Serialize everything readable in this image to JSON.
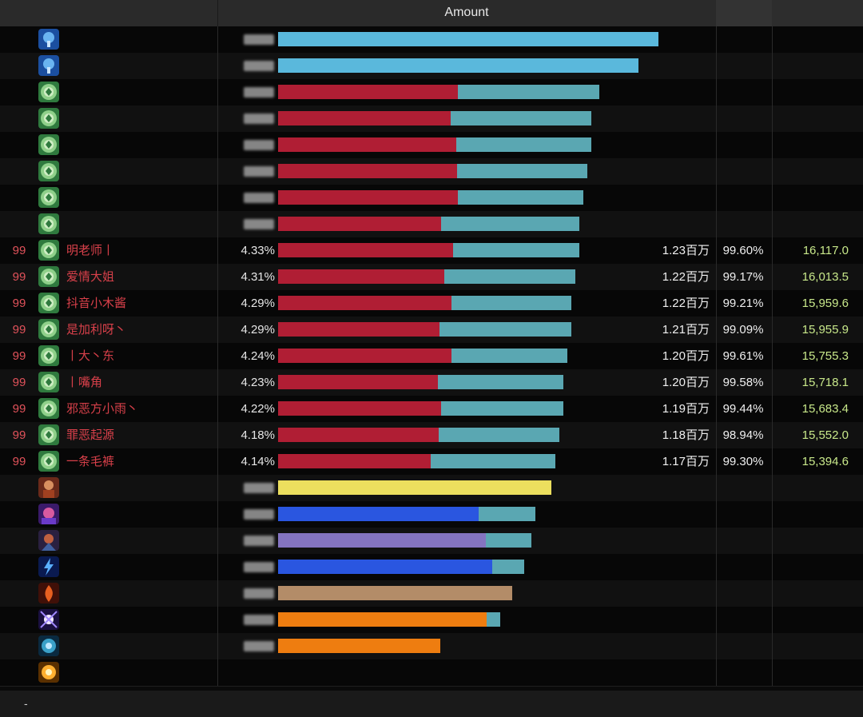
{
  "header": {
    "amount_label": "Amount"
  },
  "colors": {
    "red": "#b01e34",
    "teal": "#5aa7b2",
    "sky": "#5ab8dc",
    "yellow": "#ecdf5e",
    "blue": "#2a56e0",
    "purple": "#8474c0",
    "tan": "#b38c68",
    "orange": "#ee7d10"
  },
  "rows": [
    {
      "level": "",
      "name": "",
      "percent": "",
      "damage": "",
      "accuracy": "",
      "dps": "",
      "icon": "tree-icon",
      "seg1": {
        "color": "#5ab8dc",
        "frac": 1.0
      },
      "seg2": {
        "color": "#5ab8dc",
        "frac": 0.0
      },
      "total": 0.96
    },
    {
      "level": "",
      "name": "",
      "percent": "",
      "damage": "",
      "accuracy": "",
      "dps": "",
      "icon": "tree-icon",
      "seg1": {
        "color": "#5ab8dc",
        "frac": 1.0
      },
      "seg2": {
        "color": "#5ab8dc",
        "frac": 0.0
      },
      "total": 0.91
    },
    {
      "level": "",
      "name": "",
      "percent": "",
      "damage": "",
      "accuracy": "",
      "dps": "",
      "icon": "sigil-icon",
      "seg1": {
        "color": "#b01e34",
        "frac": 0.56
      },
      "seg2": {
        "color": "#5aa7b2",
        "frac": 0.44
      },
      "total": 0.81
    },
    {
      "level": "",
      "name": "",
      "percent": "",
      "damage": "",
      "accuracy": "",
      "dps": "",
      "icon": "sigil-icon",
      "seg1": {
        "color": "#b01e34",
        "frac": 0.55
      },
      "seg2": {
        "color": "#5aa7b2",
        "frac": 0.45
      },
      "total": 0.79
    },
    {
      "level": "",
      "name": "",
      "percent": "",
      "damage": "",
      "accuracy": "",
      "dps": "",
      "icon": "sigil-icon",
      "seg1": {
        "color": "#b01e34",
        "frac": 0.57
      },
      "seg2": {
        "color": "#5aa7b2",
        "frac": 0.43
      },
      "total": 0.79
    },
    {
      "level": "",
      "name": "",
      "percent": "",
      "damage": "",
      "accuracy": "",
      "dps": "",
      "icon": "sigil-icon",
      "seg1": {
        "color": "#b01e34",
        "frac": 0.58
      },
      "seg2": {
        "color": "#5aa7b2",
        "frac": 0.42
      },
      "total": 0.78
    },
    {
      "level": "",
      "name": "",
      "percent": "",
      "damage": "",
      "accuracy": "",
      "dps": "",
      "icon": "sigil-icon",
      "seg1": {
        "color": "#b01e34",
        "frac": 0.59
      },
      "seg2": {
        "color": "#5aa7b2",
        "frac": 0.41
      },
      "total": 0.77
    },
    {
      "level": "",
      "name": "",
      "percent": "",
      "damage": "",
      "accuracy": "",
      "dps": "",
      "icon": "sigil-icon",
      "seg1": {
        "color": "#b01e34",
        "frac": 0.54
      },
      "seg2": {
        "color": "#5aa7b2",
        "frac": 0.46
      },
      "total": 0.76
    },
    {
      "level": "99",
      "name": "明老师丨",
      "percent": "4.33%",
      "damage": "1.23百万",
      "accuracy": "99.60%",
      "dps": "16,117.0",
      "icon": "sigil-icon",
      "seg1": {
        "color": "#b01e34",
        "frac": 0.58
      },
      "seg2": {
        "color": "#5aa7b2",
        "frac": 0.42
      },
      "total": 0.76
    },
    {
      "level": "99",
      "name": "爱情大姐",
      "percent": "4.31%",
      "damage": "1.22百万",
      "accuracy": "99.17%",
      "dps": "16,013.5",
      "icon": "sigil-icon",
      "seg1": {
        "color": "#b01e34",
        "frac": 0.56
      },
      "seg2": {
        "color": "#5aa7b2",
        "frac": 0.44
      },
      "total": 0.75
    },
    {
      "level": "99",
      "name": "抖音小木酱",
      "percent": "4.29%",
      "damage": "1.22百万",
      "accuracy": "99.21%",
      "dps": "15,959.6",
      "icon": "sigil-icon",
      "seg1": {
        "color": "#b01e34",
        "frac": 0.59
      },
      "seg2": {
        "color": "#5aa7b2",
        "frac": 0.41
      },
      "total": 0.74
    },
    {
      "level": "99",
      "name": "是加利呀丶",
      "percent": "4.29%",
      "damage": "1.21百万",
      "accuracy": "99.09%",
      "dps": "15,955.9",
      "icon": "sigil-icon",
      "seg1": {
        "color": "#b01e34",
        "frac": 0.55
      },
      "seg2": {
        "color": "#5aa7b2",
        "frac": 0.45
      },
      "total": 0.74
    },
    {
      "level": "99",
      "name": "丨大丶东",
      "percent": "4.24%",
      "damage": "1.20百万",
      "accuracy": "99.61%",
      "dps": "15,755.3",
      "icon": "sigil-icon",
      "seg1": {
        "color": "#b01e34",
        "frac": 0.6
      },
      "seg2": {
        "color": "#5aa7b2",
        "frac": 0.4
      },
      "total": 0.73
    },
    {
      "level": "99",
      "name": "丨嘴角",
      "percent": "4.23%",
      "damage": "1.20百万",
      "accuracy": "99.58%",
      "dps": "15,718.1",
      "icon": "sigil-icon",
      "seg1": {
        "color": "#b01e34",
        "frac": 0.56
      },
      "seg2": {
        "color": "#5aa7b2",
        "frac": 0.44
      },
      "total": 0.72
    },
    {
      "level": "99",
      "name": "邪恶方小雨丶",
      "percent": "4.22%",
      "damage": "1.19百万",
      "accuracy": "99.44%",
      "dps": "15,683.4",
      "icon": "sigil-icon",
      "seg1": {
        "color": "#b01e34",
        "frac": 0.57
      },
      "seg2": {
        "color": "#5aa7b2",
        "frac": 0.43
      },
      "total": 0.72
    },
    {
      "level": "99",
      "name": "罪恶起源",
      "percent": "4.18%",
      "damage": "1.18百万",
      "accuracy": "98.94%",
      "dps": "15,552.0",
      "icon": "sigil-icon",
      "seg1": {
        "color": "#b01e34",
        "frac": 0.57
      },
      "seg2": {
        "color": "#5aa7b2",
        "frac": 0.43
      },
      "total": 0.71
    },
    {
      "level": "99",
      "name": "一条毛裤",
      "percent": "4.14%",
      "damage": "1.17百万",
      "accuracy": "99.30%",
      "dps": "15,394.6",
      "icon": "sigil-icon",
      "seg1": {
        "color": "#b01e34",
        "frac": 0.55
      },
      "seg2": {
        "color": "#5aa7b2",
        "frac": 0.45
      },
      "total": 0.7
    },
    {
      "level": "",
      "name": "",
      "percent": "",
      "damage": "",
      "accuracy": "",
      "dps": "",
      "icon": "warrior-icon",
      "seg1": {
        "color": "#ecdf5e",
        "frac": 1.0
      },
      "seg2": {
        "color": "#5aa7b2",
        "frac": 0.0
      },
      "total": 0.69
    },
    {
      "level": "",
      "name": "",
      "percent": "",
      "damage": "",
      "accuracy": "",
      "dps": "",
      "icon": "mage-icon",
      "seg1": {
        "color": "#2a56e0",
        "frac": 0.78
      },
      "seg2": {
        "color": "#5aa7b2",
        "frac": 0.22
      },
      "total": 0.65
    },
    {
      "level": "",
      "name": "",
      "percent": "",
      "damage": "",
      "accuracy": "",
      "dps": "",
      "icon": "hunter-icon",
      "seg1": {
        "color": "#8474c0",
        "frac": 0.82
      },
      "seg2": {
        "color": "#5aa7b2",
        "frac": 0.18
      },
      "total": 0.64
    },
    {
      "level": "",
      "name": "",
      "percent": "",
      "damage": "",
      "accuracy": "",
      "dps": "",
      "icon": "lightning-icon",
      "seg1": {
        "color": "#2a56e0",
        "frac": 0.87
      },
      "seg2": {
        "color": "#5aa7b2",
        "frac": 0.13
      },
      "total": 0.62
    },
    {
      "level": "",
      "name": "",
      "percent": "",
      "damage": "",
      "accuracy": "",
      "dps": "",
      "icon": "flame-icon",
      "seg1": {
        "color": "#b38c68",
        "frac": 1.0
      },
      "seg2": {
        "color": "#5aa7b2",
        "frac": 0.0
      },
      "total": 0.59
    },
    {
      "level": "",
      "name": "",
      "percent": "",
      "damage": "",
      "accuracy": "",
      "dps": "",
      "icon": "arcane-icon",
      "seg1": {
        "color": "#ee7d10",
        "frac": 0.94
      },
      "seg2": {
        "color": "#5aa7b2",
        "frac": 0.06
      },
      "total": 0.56
    },
    {
      "level": "",
      "name": "",
      "percent": "",
      "damage": "",
      "accuracy": "",
      "dps": "",
      "icon": "frost-icon",
      "seg1": {
        "color": "#ee7d10",
        "frac": 1.0
      },
      "seg2": {
        "color": "#5aa7b2",
        "frac": 0.0
      },
      "total": 0.41
    },
    {
      "level": "",
      "name": "",
      "percent": "",
      "damage": "",
      "accuracy": "",
      "dps": "",
      "icon": "burst-icon",
      "seg1": {
        "color": "#ee7d10",
        "frac": 0.0
      },
      "seg2": {
        "color": "#5aa7b2",
        "frac": 0.0
      },
      "total": 0.0
    }
  ],
  "footer": {
    "label": "-"
  }
}
